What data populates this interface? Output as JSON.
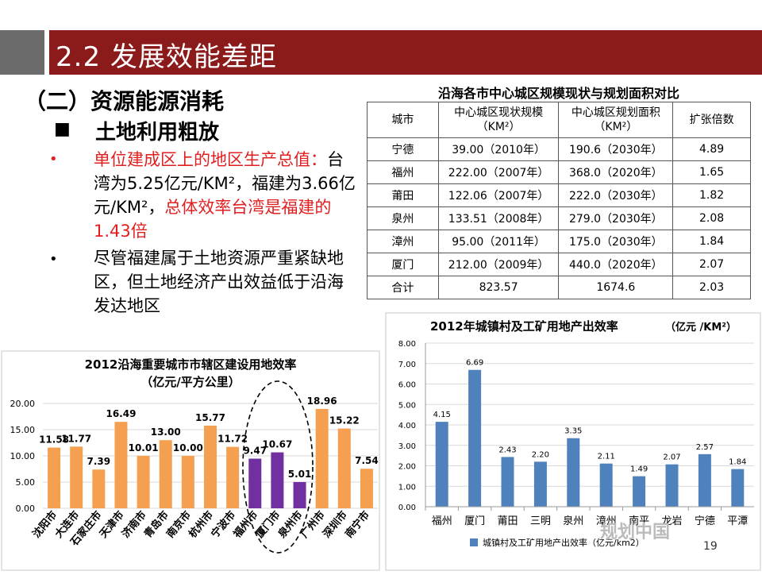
{
  "header": {
    "title": "2.2 发展效能差距"
  },
  "left": {
    "subtitle": "（二）资源能源消耗",
    "square_bullet": "■",
    "square_heading": "土地利用粗放",
    "bullet1": {
      "symbol": "•",
      "red_a": "单位建成区上的地区生产总值：",
      "black_a": "台湾为5.25亿元/KM²，福建为3.66亿元/KM²，",
      "red_b": "总体效率台湾是福建的1.43倍"
    },
    "bullet2": {
      "symbol": "•",
      "text": "尽管福建属于土地资源严重紧缺地区，但土地经济产出效益低于沿海发达地区"
    }
  },
  "table": {
    "title": "沿海各市中心城区规模现状与规划面积对比",
    "headers": [
      "城市",
      "中心城区现状规模（KM²）",
      "中心城区规划面积（KM²）",
      "扩张倍数"
    ],
    "rows": [
      [
        "宁德",
        "39.00（2010年）",
        "190.6（2030年）",
        "4.89"
      ],
      [
        "福州",
        "222.00（2007年）",
        "368.0（2020年）",
        "1.65"
      ],
      [
        "莆田",
        "122.06（2007年）",
        "222.0（2030年）",
        "1.82"
      ],
      [
        "泉州",
        "133.51（2008年）",
        "279.0（2030年）",
        "2.08"
      ],
      [
        "漳州",
        "95.00（2011年）",
        "175.0（2030年）",
        "1.84"
      ],
      [
        "厦门",
        "212.00（2009年）",
        "440.0（2020年）",
        "2.07"
      ],
      [
        "合计",
        "823.57",
        "1674.6",
        "2.03"
      ]
    ]
  },
  "chart_data": [
    {
      "type": "bar",
      "title": "2012沿海重要城市市辖区建设用地效率",
      "subtitle": "（亿元/平方公里）",
      "categories": [
        "沈阳市",
        "大连市",
        "石家庄市",
        "天津市",
        "济南市",
        "青岛市",
        "南京市",
        "杭州市",
        "宁波市",
        "福州市",
        "厦门市",
        "泉州市",
        "广州市",
        "深圳市",
        "南宁市"
      ],
      "values": [
        11.58,
        11.77,
        7.39,
        16.49,
        10.01,
        13.0,
        10.0,
        15.77,
        11.72,
        9.47,
        10.67,
        5.01,
        18.96,
        15.22,
        7.54
      ],
      "labels": [
        "11.58",
        "11.77",
        "7.39",
        "16.49",
        "10.01",
        "13.00",
        "10.00",
        "15.77",
        "11.72",
        "9.47",
        "10.67",
        "5.01",
        "18.96",
        "15.22",
        "7.54"
      ],
      "yticks": [
        "0.00",
        "5.00",
        "10.00",
        "15.00",
        "20.00"
      ],
      "ylim": [
        0,
        20
      ],
      "colors": {
        "default": "#f5a050",
        "highlight": "#7030a0"
      },
      "highlight": [
        "福州市",
        "厦门市",
        "泉州市"
      ],
      "grid": true
    },
    {
      "type": "bar",
      "title": "2012年城镇村及工矿用地产出效率",
      "title_unit": "（亿元 /KM²）",
      "categories": [
        "福州",
        "厦门",
        "莆田",
        "三明",
        "泉州",
        "漳州",
        "南平",
        "龙岩",
        "宁德",
        "平潭"
      ],
      "values": [
        4.15,
        6.69,
        2.43,
        2.2,
        3.35,
        2.11,
        1.49,
        2.07,
        2.57,
        1.84
      ],
      "labels": [
        "4.15",
        "6.69",
        "2.43",
        "2.20",
        "3.35",
        "2.11",
        "1.49",
        "2.07",
        "2.57",
        "1.84"
      ],
      "yticks": [
        "0.00",
        "1.00",
        "2.00",
        "3.00",
        "4.00",
        "5.00",
        "6.00",
        "7.00",
        "8.00"
      ],
      "ylim": [
        0,
        8
      ],
      "colors": {
        "default": "#4f81bd"
      },
      "legend": "城镇村及工矿用地产出效率（亿元/km2）",
      "legend_position": "bottom",
      "grid": true
    }
  ],
  "footer": {
    "watermark": "规划中国",
    "page": "19"
  }
}
